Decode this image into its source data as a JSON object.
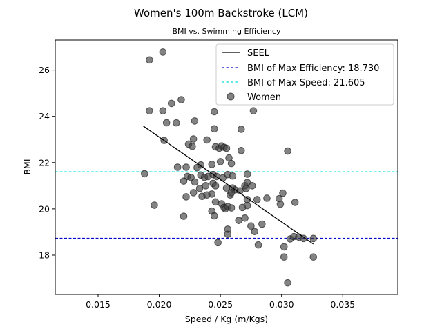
{
  "chart_data": {
    "type": "scatter",
    "title": "Women's 100m Backstroke (LCM)",
    "subtitle": "BMI vs. Swimming Efficiency",
    "xlabel": "Speed / Kg (m/Kgs)",
    "ylabel": "BMI",
    "xlim": [
      0.0115,
      0.0395
    ],
    "ylim": [
      16.3,
      27.3
    ],
    "xticks": [
      {
        "value": 0.015,
        "label": "0.015"
      },
      {
        "value": 0.02,
        "label": "0.020"
      },
      {
        "value": 0.025,
        "label": "0.025"
      },
      {
        "value": 0.03,
        "label": "0.030"
      },
      {
        "value": 0.035,
        "label": "0.035"
      }
    ],
    "yticks": [
      {
        "value": 18,
        "label": "18"
      },
      {
        "value": 20,
        "label": "20"
      },
      {
        "value": 22,
        "label": "22"
      },
      {
        "value": 24,
        "label": "24"
      },
      {
        "value": 26,
        "label": "26"
      }
    ],
    "grid": false,
    "legend_position": "top-right",
    "seel": {
      "name": "SEEL",
      "color": "#000000",
      "x": [
        0.0187,
        0.0326
      ],
      "y": [
        23.58,
        18.48
      ]
    },
    "hlines": [
      {
        "name": "BMI of Max Efficiency: 18.730",
        "value": 18.73,
        "color": "#0000cc",
        "style": "dashed"
      },
      {
        "name": "BMI of Max Speed: 21.605",
        "value": 21.605,
        "color": "#00e0e0",
        "style": "dashed"
      }
    ],
    "series": [
      {
        "name": "Women",
        "color": "#404040",
        "points": [
          [
            0.0192,
            26.44
          ],
          [
            0.0203,
            26.78
          ],
          [
            0.0192,
            24.24
          ],
          [
            0.0203,
            24.24
          ],
          [
            0.021,
            24.56
          ],
          [
            0.0218,
            24.72
          ],
          [
            0.0206,
            23.72
          ],
          [
            0.0214,
            23.72
          ],
          [
            0.0204,
            22.96
          ],
          [
            0.0229,
            23.8
          ],
          [
            0.0245,
            24.2
          ],
          [
            0.0277,
            24.24
          ],
          [
            0.0267,
            23.44
          ],
          [
            0.0245,
            23.46
          ],
          [
            0.0239,
            22.98
          ],
          [
            0.0228,
            23.02
          ],
          [
            0.0224,
            22.8
          ],
          [
            0.0227,
            22.7
          ],
          [
            0.0246,
            22.68
          ],
          [
            0.0249,
            22.62
          ],
          [
            0.0251,
            22.72
          ],
          [
            0.0253,
            22.66
          ],
          [
            0.0255,
            22.62
          ],
          [
            0.0267,
            22.52
          ],
          [
            0.0305,
            22.5
          ],
          [
            0.0257,
            22.2
          ],
          [
            0.0259,
            21.96
          ],
          [
            0.025,
            22.04
          ],
          [
            0.0243,
            21.92
          ],
          [
            0.0234,
            21.9
          ],
          [
            0.0231,
            21.78
          ],
          [
            0.0222,
            21.8
          ],
          [
            0.0215,
            21.8
          ],
          [
            0.0188,
            21.52
          ],
          [
            0.0223,
            21.4
          ],
          [
            0.0226,
            21.36
          ],
          [
            0.0234,
            21.46
          ],
          [
            0.0237,
            21.36
          ],
          [
            0.024,
            21.4
          ],
          [
            0.0244,
            21.48
          ],
          [
            0.0247,
            21.4
          ],
          [
            0.0252,
            21.34
          ],
          [
            0.0256,
            21.48
          ],
          [
            0.026,
            21.42
          ],
          [
            0.0272,
            21.5
          ],
          [
            0.022,
            21.2
          ],
          [
            0.0229,
            21.16
          ],
          [
            0.0238,
            21.0
          ],
          [
            0.0244,
            21.1
          ],
          [
            0.0246,
            21.0
          ],
          [
            0.0255,
            20.9
          ],
          [
            0.026,
            20.9
          ],
          [
            0.0262,
            20.82
          ],
          [
            0.0266,
            20.78
          ],
          [
            0.027,
            21.0
          ],
          [
            0.0272,
            21.14
          ],
          [
            0.0276,
            21.0
          ],
          [
            0.0271,
            20.88
          ],
          [
            0.0233,
            20.88
          ],
          [
            0.0228,
            20.7
          ],
          [
            0.0235,
            20.54
          ],
          [
            0.0222,
            20.52
          ],
          [
            0.0239,
            20.6
          ],
          [
            0.0243,
            20.64
          ],
          [
            0.0258,
            20.6
          ],
          [
            0.0259,
            20.7
          ],
          [
            0.0272,
            20.4
          ],
          [
            0.028,
            20.4
          ],
          [
            0.0288,
            20.46
          ],
          [
            0.0298,
            20.44
          ],
          [
            0.0301,
            20.68
          ],
          [
            0.0196,
            20.16
          ],
          [
            0.0246,
            20.3
          ],
          [
            0.0251,
            20.22
          ],
          [
            0.0253,
            20.06
          ],
          [
            0.0254,
            20.0
          ],
          [
            0.0256,
            20.1
          ],
          [
            0.0259,
            20.04
          ],
          [
            0.0268,
            20.06
          ],
          [
            0.0272,
            20.14
          ],
          [
            0.0299,
            20.2
          ],
          [
            0.0311,
            20.28
          ],
          [
            0.0243,
            19.9
          ],
          [
            0.0245,
            19.7
          ],
          [
            0.022,
            19.68
          ],
          [
            0.0265,
            19.5
          ],
          [
            0.027,
            19.6
          ],
          [
            0.0275,
            19.26
          ],
          [
            0.0284,
            19.34
          ],
          [
            0.0256,
            19.12
          ],
          [
            0.0278,
            19.02
          ],
          [
            0.0256,
            18.9
          ],
          [
            0.0248,
            18.54
          ],
          [
            0.0281,
            18.44
          ],
          [
            0.0302,
            18.36
          ],
          [
            0.0307,
            18.7
          ],
          [
            0.031,
            18.8
          ],
          [
            0.0314,
            18.78
          ],
          [
            0.0318,
            18.72
          ],
          [
            0.0326,
            18.72
          ],
          [
            0.0302,
            17.92
          ],
          [
            0.0326,
            17.92
          ],
          [
            0.0305,
            16.8
          ]
        ]
      }
    ]
  }
}
